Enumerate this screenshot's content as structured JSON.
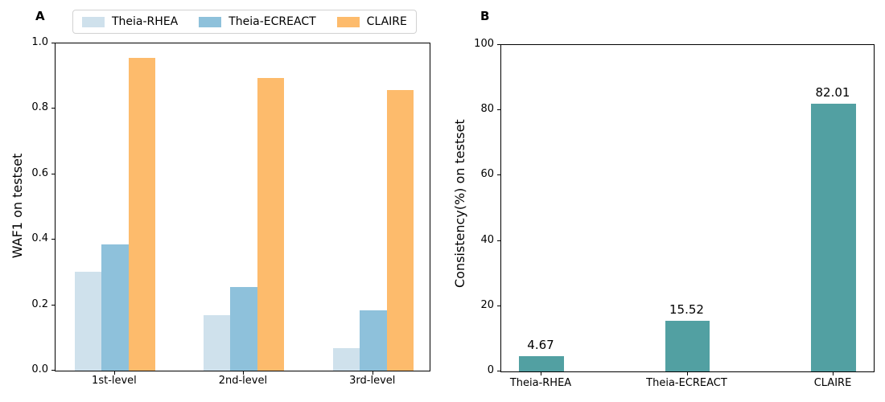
{
  "panels": [
    {
      "label": "A"
    },
    {
      "label": "B"
    }
  ],
  "chart_data": [
    {
      "type": "bar",
      "panel_label": "A",
      "title": "",
      "categories": [
        "1st-level",
        "2nd-level",
        "3rd-level"
      ],
      "series": [
        {
          "name": "Theia-RHEA",
          "color": "#cfe1ec",
          "values": [
            0.303,
            0.17,
            0.07
          ]
        },
        {
          "name": "Theia-ECREACT",
          "color": "#8ec1db",
          "values": [
            0.385,
            0.256,
            0.184
          ]
        },
        {
          "name": "CLAIRE",
          "color": "#fdbb6c",
          "values": [
            0.957,
            0.895,
            0.858
          ]
        }
      ],
      "xlabel": "",
      "ylabel": "WAF1 on testset",
      "ylim": [
        0.0,
        1.0
      ],
      "yticks": [
        0.0,
        0.2,
        0.4,
        0.6,
        0.8,
        1.0
      ],
      "ytick_labels": [
        "0.0",
        "0.2",
        "0.4",
        "0.6",
        "0.8",
        "1.0"
      ],
      "grid": false,
      "legend": {
        "position": "top",
        "entries": [
          "Theia-RHEA",
          "Theia-ECREACT",
          "CLAIRE"
        ]
      },
      "layout": {
        "group_centers_frac": [
          0.159,
          0.503,
          0.849
        ],
        "bar_width_frac": 0.072
      }
    },
    {
      "type": "bar",
      "panel_label": "B",
      "title": "",
      "categories": [
        "Theia-RHEA",
        "Theia-ECREACT",
        "CLAIRE"
      ],
      "values": [
        4.67,
        15.52,
        82.01
      ],
      "bar_labels": [
        "4.67",
        "15.52",
        "82.01"
      ],
      "bar_color": "#52a0a2",
      "xlabel": "",
      "ylabel": "Consistency(%) on testset",
      "ylim": [
        0,
        100
      ],
      "yticks": [
        0,
        20,
        40,
        60,
        80,
        100
      ],
      "ytick_labels": [
        "0",
        "20",
        "40",
        "60",
        "80",
        "100"
      ],
      "grid": false,
      "legend": null,
      "layout": {
        "bar_centers_frac": [
          0.108,
          0.5,
          0.892
        ],
        "bar_width_frac": 0.119
      }
    }
  ]
}
